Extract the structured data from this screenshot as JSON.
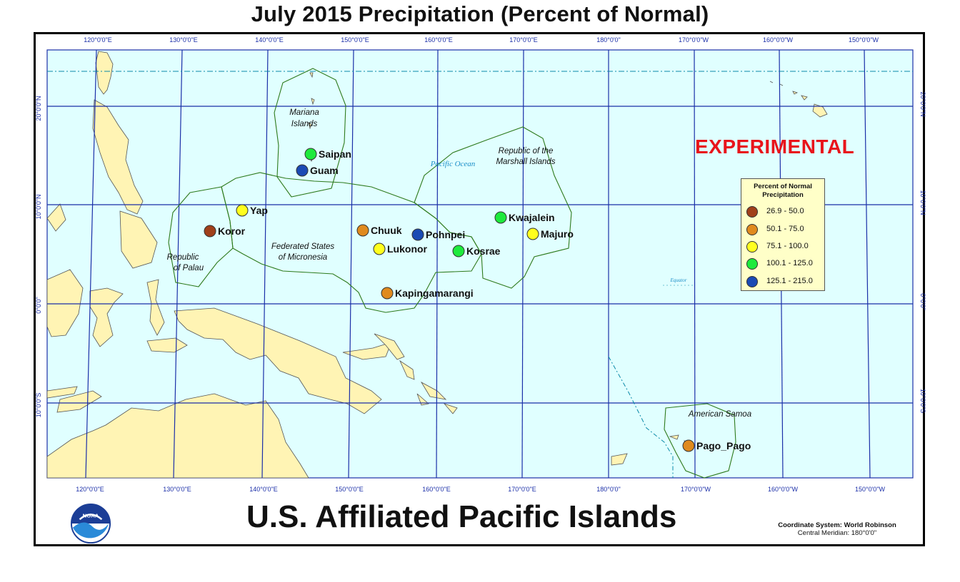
{
  "title": "July 2015 Precipitation (Percent of Normal)",
  "subtitle": "U.S. Affiliated Pacific Islands",
  "watermark": "EXPERIMENTAL",
  "coordinate_system": {
    "line1": "Coordinate System: World Robinson",
    "line2": "Central Meridian: 180°0'0\""
  },
  "logo_text": "NOAA",
  "legend": {
    "title": "Percent of Normal Precipitation",
    "items": [
      {
        "label": "26.9 - 50.0",
        "color": "#a0401a"
      },
      {
        "label": "50.1 - 75.0",
        "color": "#e08a1e"
      },
      {
        "label": "75.1 - 100.0",
        "color": "#ffff1e"
      },
      {
        "label": "100.1 - 125.0",
        "color": "#1eea3c"
      },
      {
        "label": "125.1 - 215.0",
        "color": "#1a4ab4"
      }
    ]
  },
  "longitude_labels": [
    "120°0'0\"E",
    "130°0'0\"E",
    "140°0'0\"E",
    "150°0'0\"E",
    "160°0'0\"E",
    "170°0'0\"E",
    "180°0'0\"",
    "170°0'0\"W",
    "160°0'0\"W",
    "150°0'0\"W"
  ],
  "latitude_labels": [
    "20°0'0\"N",
    "10°0'0\"N",
    "0°0'0\"",
    "10°0'0\"S"
  ],
  "region_labels": {
    "mariana": [
      "Mariana",
      "Islands"
    ],
    "marshall": [
      "Republic of the",
      "Marshall Islands"
    ],
    "pacific_ocean": "Pacific Ocean",
    "fsm": [
      "Federated States",
      "of Micronesia"
    ],
    "palau": [
      "Republic",
      "of Palau"
    ],
    "samoa": "American Samoa",
    "equator": "Equator"
  },
  "stations": [
    {
      "name": "Saipan",
      "class": 3
    },
    {
      "name": "Guam",
      "class": 4
    },
    {
      "name": "Yap",
      "class": 2
    },
    {
      "name": "Koror",
      "class": 0
    },
    {
      "name": "Chuuk",
      "class": 1
    },
    {
      "name": "Pohnpei",
      "class": 4
    },
    {
      "name": "Lukonor",
      "class": 2
    },
    {
      "name": "Kosrae",
      "class": 3
    },
    {
      "name": "Kwajalein",
      "class": 3
    },
    {
      "name": "Majuro",
      "class": 2
    },
    {
      "name": "Kapingamarangi",
      "class": 1
    },
    {
      "name": "Pago_Pago",
      "class": 1
    }
  ],
  "colors": {
    "ocean": "#e0ffff",
    "land": "#fff4b4",
    "graticule": "#1b2fa8",
    "boundary": "#2e7a1c"
  }
}
